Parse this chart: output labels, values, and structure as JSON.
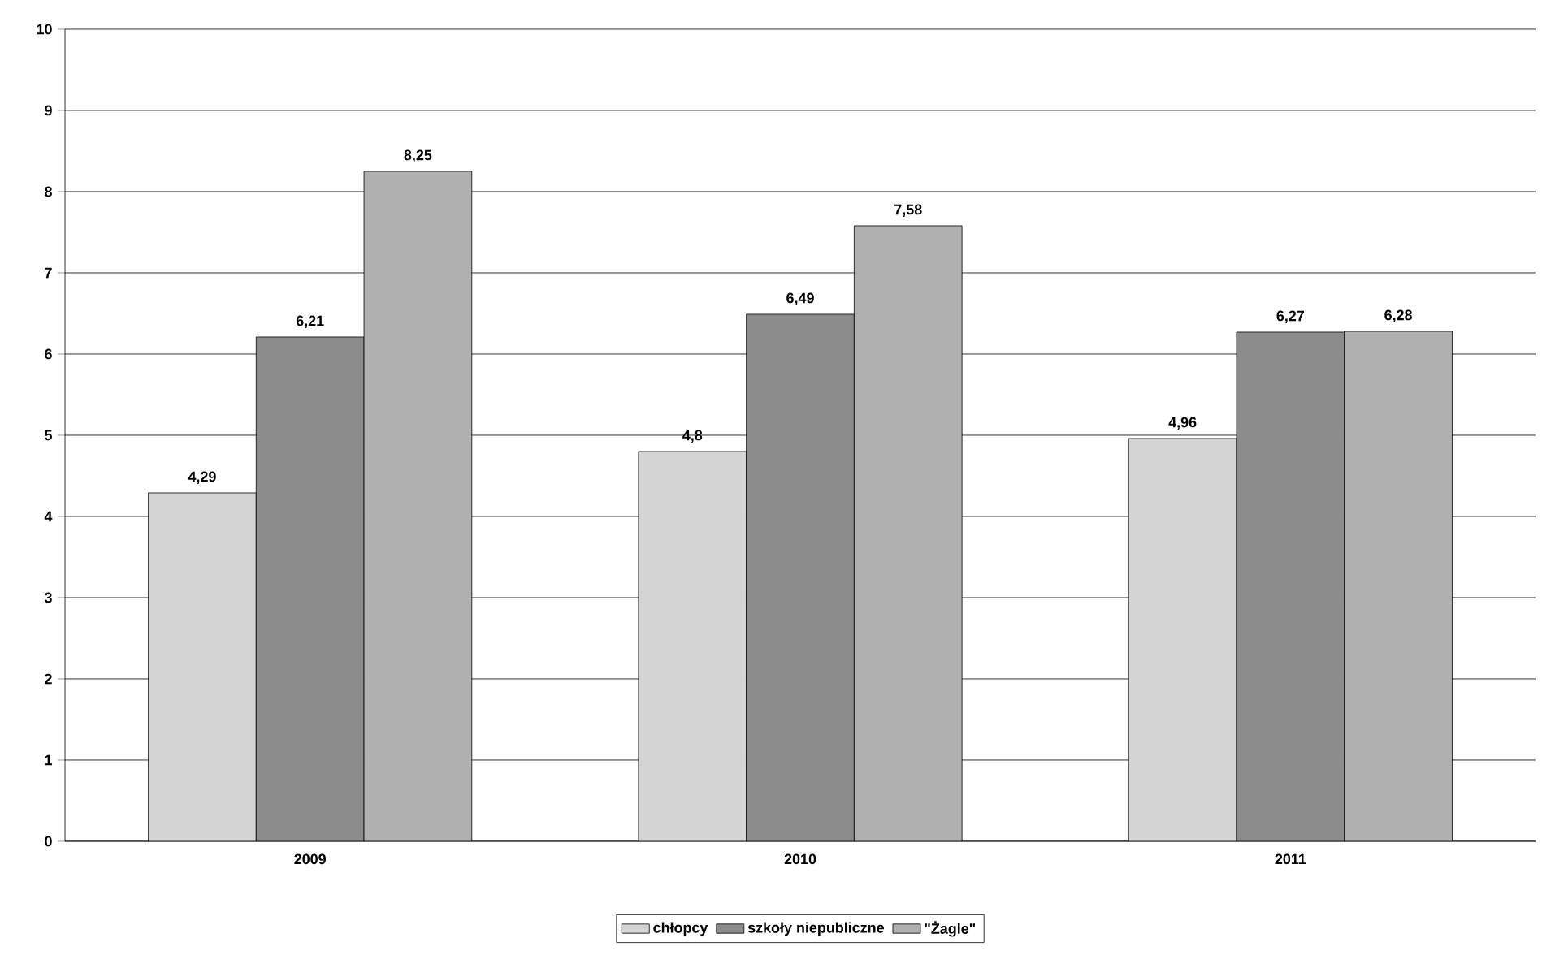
{
  "chart_data": {
    "type": "bar",
    "categories": [
      "2009",
      "2010",
      "2011"
    ],
    "series": [
      {
        "name": "chłopcy",
        "color": "#d4d4d4",
        "values": [
          4.29,
          4.8,
          4.96
        ],
        "value_labels": [
          "4,29",
          "4,8",
          "4,96"
        ]
      },
      {
        "name": "szkoły niepubliczne",
        "color": "#8c8c8c",
        "values": [
          6.21,
          6.49,
          6.27
        ],
        "value_labels": [
          "6,21",
          "6,49",
          "6,27"
        ]
      },
      {
        "name": "\"Żagle\"",
        "color": "#b0b0b0",
        "values": [
          8.25,
          7.58,
          6.28
        ],
        "value_labels": [
          "8,25",
          "7,58",
          "6,28"
        ]
      }
    ],
    "ylim": [
      0,
      10
    ],
    "yticks": [
      0,
      1,
      2,
      3,
      4,
      5,
      6,
      7,
      8,
      9,
      10
    ],
    "grid": "y",
    "legend": "bottom"
  }
}
